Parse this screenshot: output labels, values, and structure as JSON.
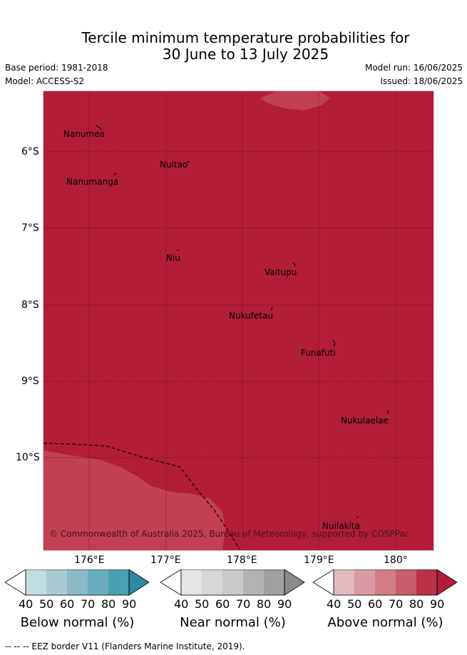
{
  "title_line1": "Tercile minimum temperature probabilities for",
  "title_line2": "30 June to 13 July 2025",
  "base_period": "Base period: 1981-2018",
  "model": "Model: ACCESS-S2",
  "model_run": "Model run: 16/06/2025",
  "issued": "Issued: 18/06/2025",
  "lat_labels": [
    "6°S",
    "7°S",
    "8°S",
    "9°S",
    "10°S"
  ],
  "lon_labels": [
    "176°E",
    "177°E",
    "178°E",
    "179°E",
    "180°"
  ],
  "places": [
    {
      "name": "Nanumea"
    },
    {
      "name": "Nuitao"
    },
    {
      "name": "Nanumanga"
    },
    {
      "name": "Niu"
    },
    {
      "name": "Vaitupu"
    },
    {
      "name": "Nukufetau"
    },
    {
      "name": "Funafuti"
    },
    {
      "name": "Nukulaelae"
    },
    {
      "name": "Nuilakita"
    }
  ],
  "copyright": "© Commonwealth of Australia 2025, Bureau of Meteorology, supported by COSPPac",
  "colors": {
    "above_80_90": "#b21e38",
    "above_70_80": "#c14054",
    "below": [
      "#c2dde2",
      "#a8cbd1",
      "#8bb9c5",
      "#6aadbd",
      "#47a1b1",
      "#2b8ba2"
    ],
    "near": [
      "#e5e5e5",
      "#d7d7d7",
      "#c9c9c9",
      "#b3b3b3",
      "#a0a0a0",
      "#8a8a8a"
    ],
    "above": [
      "#e3b9c0",
      "#d89aa3",
      "#d27c86",
      "#c65c6c",
      "#bb3248",
      "#b21e38"
    ]
  },
  "colorbars": [
    {
      "title": "Below normal (%)",
      "ticks": [
        "40",
        "50",
        "60",
        "70",
        "80",
        "90"
      ]
    },
    {
      "title": "Near normal (%)",
      "ticks": [
        "40",
        "50",
        "60",
        "70",
        "80",
        "90"
      ]
    },
    {
      "title": "Above normal (%)",
      "ticks": [
        "40",
        "50",
        "60",
        "70",
        "80",
        "90"
      ]
    }
  ],
  "footer": "--  --  -- EEZ border V11 (Flanders Marine Institute, 2019)."
}
